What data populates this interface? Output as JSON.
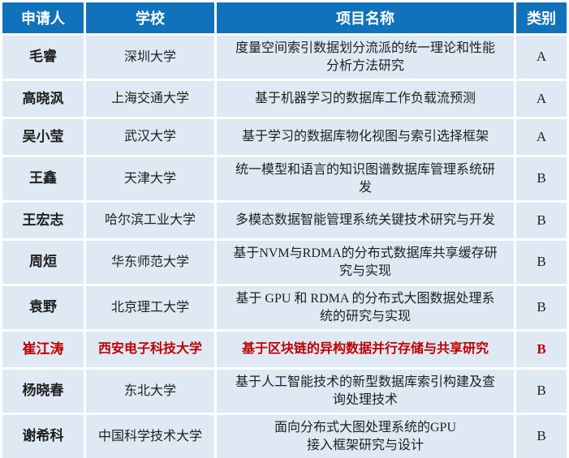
{
  "table": {
    "headers": [
      {
        "label": "申请人"
      },
      {
        "label": "学校"
      },
      {
        "label": "项目名称"
      },
      {
        "label": "类别"
      }
    ],
    "rows": [
      {
        "name": "毛睿",
        "school": "深圳大学",
        "project": "度量空间索引数据划分流派的统一理论和性能\n分析方法研究",
        "category": "A",
        "highlight": false
      },
      {
        "name": "高晓沨",
        "school": "上海交通大学",
        "project": "基于机器学习的数据库工作负载流预测",
        "category": "A",
        "highlight": false
      },
      {
        "name": "吴小莹",
        "school": "武汉大学",
        "project": "基于学习的数据库物化视图与索引选择框架",
        "category": "A",
        "highlight": false
      },
      {
        "name": "王鑫",
        "school": "天津大学",
        "project": "统一模型和语言的知识图谱数据库管理系统研\n发",
        "category": "B",
        "highlight": false
      },
      {
        "name": "王宏志",
        "school": "哈尔滨工业大学",
        "project": "多模态数据智能管理系统关键技术研究与开发",
        "category": "B",
        "highlight": false
      },
      {
        "name": "周烜",
        "school": "华东师范大学",
        "project": "基于NVM与RDMA的分布式数据库共享缓存研\n究与实现",
        "category": "B",
        "highlight": false
      },
      {
        "name": "袁野",
        "school": "北京理工大学",
        "project": "基于 GPU 和 RDMA 的分布式大图数据处理系\n统的研究与实现",
        "category": "B",
        "highlight": false
      },
      {
        "name": "崔江涛",
        "school": "西安电子科技大学",
        "project": "基于区块链的异构数据并行存储与共享研究",
        "category": "B",
        "highlight": true
      },
      {
        "name": "杨晓春",
        "school": "东北大学",
        "project": "基于人工智能技术的新型数据库索引构建及查\n询处理技术",
        "category": "B",
        "highlight": false
      },
      {
        "name": "谢希科",
        "school": "中国科学技术大学",
        "project": "面向分布式大图处理系统的GPU\n接入框架研究与设计",
        "category": "B",
        "highlight": false
      }
    ]
  },
  "colors": {
    "header_bg": "#1172BC",
    "header_text": "#FFFFFF",
    "row_bg": "#DEE9F4",
    "text": "#1F1F1F",
    "highlight_text": "#C00000"
  }
}
